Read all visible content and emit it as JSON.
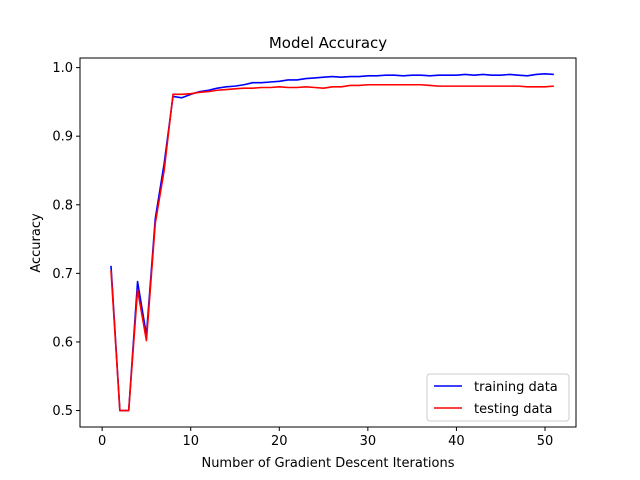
{
  "chart_data": {
    "type": "line",
    "title": "Model Accuracy",
    "xlabel": "Number of Gradient Descent Iterations",
    "ylabel": "Accuracy",
    "xlim": [
      -2.5,
      53.5
    ],
    "ylim": [
      0.476,
      1.014
    ],
    "xticks": [
      0,
      10,
      20,
      30,
      40,
      50
    ],
    "xtick_labels": [
      "0",
      "10",
      "20",
      "30",
      "40",
      "50"
    ],
    "yticks": [
      0.5,
      0.6,
      0.7,
      0.8,
      0.9,
      1.0
    ],
    "ytick_labels": [
      "0.5",
      "0.6",
      "0.7",
      "0.8",
      "0.9",
      "1.0"
    ],
    "grid": false,
    "legend_position": "lower-right",
    "x": [
      1,
      2,
      3,
      4,
      5,
      6,
      7,
      8,
      9,
      10,
      11,
      12,
      13,
      14,
      15,
      16,
      17,
      18,
      19,
      20,
      21,
      22,
      23,
      24,
      25,
      26,
      27,
      28,
      29,
      30,
      31,
      32,
      33,
      34,
      35,
      36,
      37,
      38,
      39,
      40,
      41,
      42,
      43,
      44,
      45,
      46,
      47,
      48,
      49,
      50,
      51
    ],
    "series": [
      {
        "name": "training data",
        "color": "#0000ff",
        "values": [
          0.711,
          0.5,
          0.5,
          0.688,
          0.61,
          0.78,
          0.86,
          0.958,
          0.956,
          0.961,
          0.965,
          0.967,
          0.97,
          0.972,
          0.973,
          0.975,
          0.978,
          0.978,
          0.979,
          0.98,
          0.982,
          0.982,
          0.984,
          0.985,
          0.986,
          0.987,
          0.986,
          0.987,
          0.987,
          0.988,
          0.988,
          0.989,
          0.989,
          0.988,
          0.989,
          0.989,
          0.988,
          0.989,
          0.989,
          0.989,
          0.99,
          0.989,
          0.99,
          0.989,
          0.989,
          0.99,
          0.989,
          0.988,
          0.99,
          0.991,
          0.99
        ]
      },
      {
        "name": "testing data",
        "color": "#ff0000",
        "values": [
          0.704,
          0.5,
          0.5,
          0.676,
          0.602,
          0.773,
          0.85,
          0.961,
          0.961,
          0.962,
          0.964,
          0.965,
          0.967,
          0.968,
          0.969,
          0.97,
          0.97,
          0.971,
          0.971,
          0.972,
          0.971,
          0.971,
          0.972,
          0.971,
          0.97,
          0.972,
          0.972,
          0.974,
          0.974,
          0.975,
          0.975,
          0.975,
          0.975,
          0.975,
          0.975,
          0.975,
          0.974,
          0.973,
          0.973,
          0.973,
          0.973,
          0.973,
          0.973,
          0.973,
          0.973,
          0.973,
          0.973,
          0.972,
          0.972,
          0.972,
          0.973
        ]
      }
    ]
  }
}
